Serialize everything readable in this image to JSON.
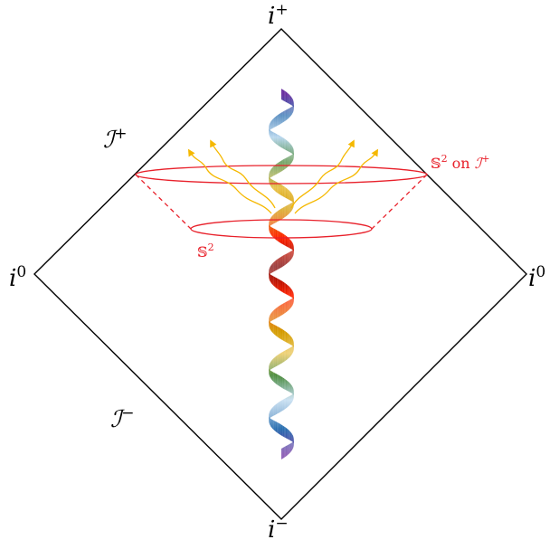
{
  "labels": {
    "i_plus_base": "i",
    "i_plus_sup": "+",
    "i_minus_base": "i",
    "i_minus_sup": "−",
    "i0_left_base": "i",
    "i0_left_sup": "0",
    "i0_right_base": "i",
    "i0_right_sup": "0",
    "scri_plus_base": "ℐ",
    "scri_plus_sup": "+",
    "scri_minus_base": "ℐ",
    "scri_minus_sup": "−",
    "sphere_on_scri_prefix": "𝕊",
    "sphere_on_scri_sup": "2",
    "sphere_on_scri_mid": " on ",
    "sphere_on_scri_scri": "ℐ",
    "sphere_on_scri_scri_sup": "+",
    "sphere_base": "𝕊",
    "sphere_sup": "2"
  },
  "colors": {
    "diagram_lines": "#000000",
    "sphere": "#e8202a",
    "radiation": "#f5b800",
    "helix_gradient": [
      "#6a2fa0",
      "#2a6fb0",
      "#b9d7ee",
      "#4a8a3a",
      "#e9c24a",
      "#d39b00",
      "#ff2200",
      "#7a0000"
    ]
  }
}
